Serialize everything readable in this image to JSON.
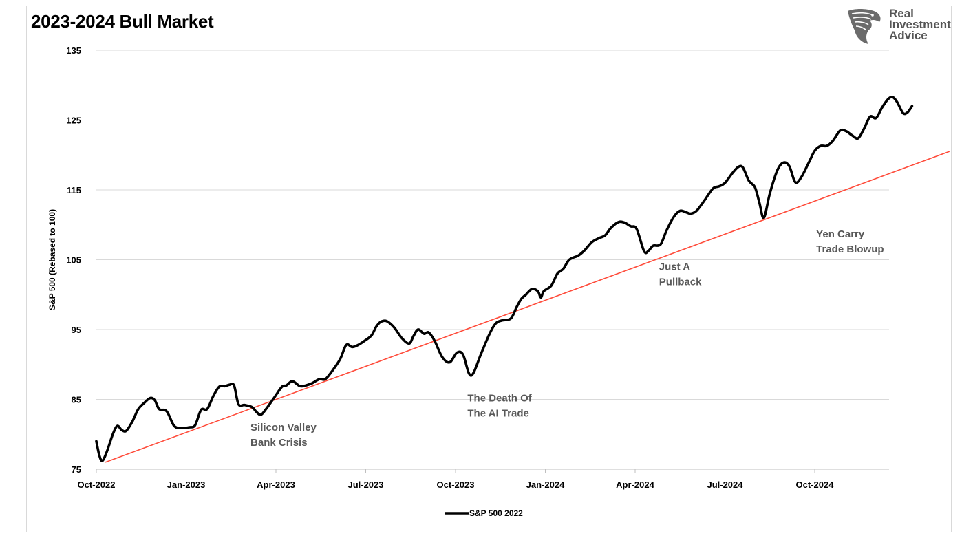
{
  "header": {
    "title": "2023-2024 Bull Market",
    "logo_lines": [
      "Real",
      "Investment",
      "Advice"
    ],
    "logo_icon": "eagle-head-icon"
  },
  "colors": {
    "series_line": "#000000",
    "trend_line": "#ff4b3a",
    "grid": "#d9d9d9",
    "annotation_text": "#595959"
  },
  "chart_data": {
    "type": "line",
    "title": "2023-2024 Bull Market",
    "ylabel": "S&P 500 (Rebased to 100)",
    "xlabel": "",
    "ylim": [
      75,
      135
    ],
    "yticks": [
      "75",
      "85",
      "95",
      "105",
      "115",
      "125",
      "135"
    ],
    "xticks": [
      "Oct-2022",
      "Jan-2023",
      "Apr-2023",
      "Jul-2023",
      "Oct-2023",
      "Jan-2024",
      "Apr-2024",
      "Jul-2024",
      "Oct-2024"
    ],
    "grid": "horizontal",
    "legend_position": "bottom",
    "x_unit": "months since Oct-2022",
    "series": [
      {
        "name": "S&P 500 2022",
        "points": [
          [
            0.0,
            79.0
          ],
          [
            0.1,
            77.0
          ],
          [
            0.2,
            76.2
          ],
          [
            0.35,
            77.5
          ],
          [
            0.55,
            80.0
          ],
          [
            0.7,
            81.2
          ],
          [
            0.85,
            80.6
          ],
          [
            1.0,
            80.5
          ],
          [
            1.2,
            81.8
          ],
          [
            1.4,
            83.6
          ],
          [
            1.6,
            84.5
          ],
          [
            1.8,
            85.2
          ],
          [
            1.95,
            84.9
          ],
          [
            2.1,
            83.6
          ],
          [
            2.35,
            83.3
          ],
          [
            2.6,
            81.2
          ],
          [
            2.85,
            80.9
          ],
          [
            3.1,
            81.0
          ],
          [
            3.3,
            81.3
          ],
          [
            3.5,
            83.5
          ],
          [
            3.7,
            83.6
          ],
          [
            3.9,
            85.4
          ],
          [
            4.1,
            86.8
          ],
          [
            4.3,
            86.9
          ],
          [
            4.45,
            87.1
          ],
          [
            4.6,
            87.0
          ],
          [
            4.75,
            84.3
          ],
          [
            4.95,
            84.2
          ],
          [
            5.2,
            83.9
          ],
          [
            5.35,
            83.2
          ],
          [
            5.5,
            82.8
          ],
          [
            5.7,
            83.8
          ],
          [
            5.95,
            85.3
          ],
          [
            6.2,
            86.8
          ],
          [
            6.35,
            87.0
          ],
          [
            6.55,
            87.6
          ],
          [
            6.8,
            86.9
          ],
          [
            7.0,
            87.0
          ],
          [
            7.2,
            87.3
          ],
          [
            7.45,
            87.9
          ],
          [
            7.65,
            87.9
          ],
          [
            7.9,
            89.2
          ],
          [
            8.15,
            90.8
          ],
          [
            8.35,
            92.8
          ],
          [
            8.55,
            92.5
          ],
          [
            8.75,
            92.8
          ],
          [
            9.0,
            93.5
          ],
          [
            9.2,
            94.2
          ],
          [
            9.35,
            95.4
          ],
          [
            9.5,
            96.1
          ],
          [
            9.7,
            96.2
          ],
          [
            9.95,
            95.3
          ],
          [
            10.2,
            93.8
          ],
          [
            10.45,
            93.0
          ],
          [
            10.6,
            94.1
          ],
          [
            10.75,
            95.0
          ],
          [
            10.95,
            94.4
          ],
          [
            11.1,
            94.6
          ],
          [
            11.3,
            93.4
          ],
          [
            11.55,
            91.1
          ],
          [
            11.8,
            90.3
          ],
          [
            12.05,
            91.7
          ],
          [
            12.25,
            91.4
          ],
          [
            12.45,
            88.7
          ],
          [
            12.6,
            88.8
          ],
          [
            12.85,
            91.5
          ],
          [
            13.15,
            94.5
          ],
          [
            13.35,
            95.9
          ],
          [
            13.55,
            96.3
          ],
          [
            13.85,
            96.6
          ],
          [
            14.05,
            98.3
          ],
          [
            14.2,
            99.4
          ],
          [
            14.35,
            100.0
          ],
          [
            14.55,
            100.8
          ],
          [
            14.75,
            100.5
          ],
          [
            14.85,
            99.6
          ],
          [
            14.95,
            100.5
          ],
          [
            15.2,
            101.3
          ],
          [
            15.4,
            103.0
          ],
          [
            15.6,
            103.7
          ],
          [
            15.8,
            105.0
          ],
          [
            16.1,
            105.6
          ],
          [
            16.3,
            106.3
          ],
          [
            16.55,
            107.5
          ],
          [
            16.8,
            108.1
          ],
          [
            17.0,
            108.5
          ],
          [
            17.2,
            109.6
          ],
          [
            17.45,
            110.4
          ],
          [
            17.65,
            110.3
          ],
          [
            17.85,
            109.8
          ],
          [
            18.05,
            109.4
          ],
          [
            18.3,
            106.2
          ],
          [
            18.45,
            106.3
          ],
          [
            18.6,
            107.0
          ],
          [
            18.85,
            107.2
          ],
          [
            19.05,
            109.2
          ],
          [
            19.3,
            111.2
          ],
          [
            19.5,
            112.0
          ],
          [
            19.7,
            111.8
          ],
          [
            19.85,
            111.6
          ],
          [
            20.05,
            112.0
          ],
          [
            20.3,
            113.4
          ],
          [
            20.6,
            115.2
          ],
          [
            20.8,
            115.5
          ],
          [
            21.0,
            116.0
          ],
          [
            21.25,
            117.4
          ],
          [
            21.45,
            118.3
          ],
          [
            21.6,
            118.2
          ],
          [
            21.8,
            116.3
          ],
          [
            22.0,
            115.4
          ],
          [
            22.15,
            113.2
          ],
          [
            22.3,
            111.0
          ],
          [
            22.5,
            114.5
          ],
          [
            22.75,
            117.8
          ],
          [
            22.95,
            118.9
          ],
          [
            23.15,
            118.4
          ],
          [
            23.35,
            116.1
          ],
          [
            23.55,
            116.8
          ],
          [
            23.8,
            118.9
          ],
          [
            24.0,
            120.6
          ],
          [
            24.2,
            121.3
          ],
          [
            24.4,
            121.3
          ],
          [
            24.6,
            122.0
          ],
          [
            24.85,
            123.5
          ],
          [
            25.05,
            123.4
          ],
          [
            25.25,
            122.8
          ],
          [
            25.45,
            122.4
          ],
          [
            25.65,
            123.8
          ],
          [
            25.85,
            125.5
          ],
          [
            26.05,
            125.3
          ],
          [
            26.25,
            126.8
          ],
          [
            26.45,
            128.0
          ],
          [
            26.6,
            128.3
          ],
          [
            26.75,
            127.6
          ],
          [
            26.95,
            126.0
          ],
          [
            27.1,
            126.1
          ],
          [
            27.25,
            127.0
          ]
        ]
      }
    ],
    "trendline": {
      "points": [
        [
          0.3,
          76.0
        ],
        [
          28.5,
          120.5
        ]
      ]
    },
    "annotations": [
      {
        "lines": [
          "Silicon Valley",
          "Bank Crisis"
        ],
        "x": 5.15,
        "y": 80.5
      },
      {
        "lines": [
          "The Death Of",
          "The AI Trade"
        ],
        "x": 12.4,
        "y": 84.7
      },
      {
        "lines": [
          "Just A",
          "Pullback"
        ],
        "x": 18.8,
        "y": 103.5
      },
      {
        "lines": [
          "Yen Carry",
          "Trade Blowup"
        ],
        "x": 24.05,
        "y": 108.2
      }
    ]
  }
}
